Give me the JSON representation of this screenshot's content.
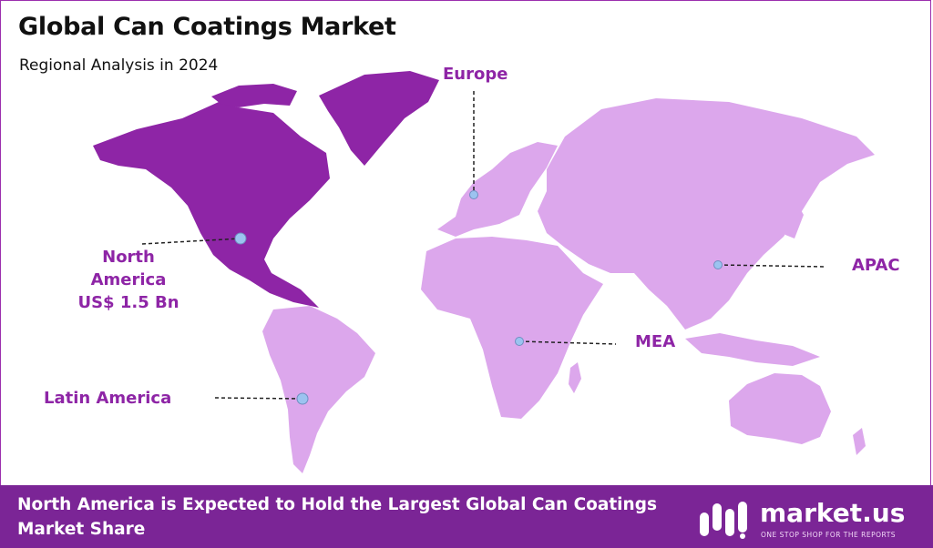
{
  "header": {
    "title": "Global Can Coatings Market",
    "subtitle": "Regional Analysis in 2024"
  },
  "regions": [
    {
      "name": "North America",
      "value": "US$ 1.5 Bn",
      "highlighted": true
    },
    {
      "name": "Europe",
      "highlighted": false
    },
    {
      "name": "APAC",
      "highlighted": false
    },
    {
      "name": "MEA",
      "highlighted": false
    },
    {
      "name": "Latin America",
      "highlighted": false
    }
  ],
  "north_america_label": {
    "line1": "North",
    "line2": "America",
    "line3": "US$ 1.5 Bn"
  },
  "footer": {
    "text": "North America is Expected to Hold the Largest Global Can Coatings Market Share"
  },
  "brand": {
    "name": "market.us",
    "tagline": "ONE STOP SHOP FOR THE REPORTS"
  },
  "colors": {
    "highlight_region": "#8e25a6",
    "other_regions": "#dca7ec",
    "label_text": "#8e25a6",
    "footer_background": "#7b2596",
    "marker": "#9cc3f0"
  }
}
